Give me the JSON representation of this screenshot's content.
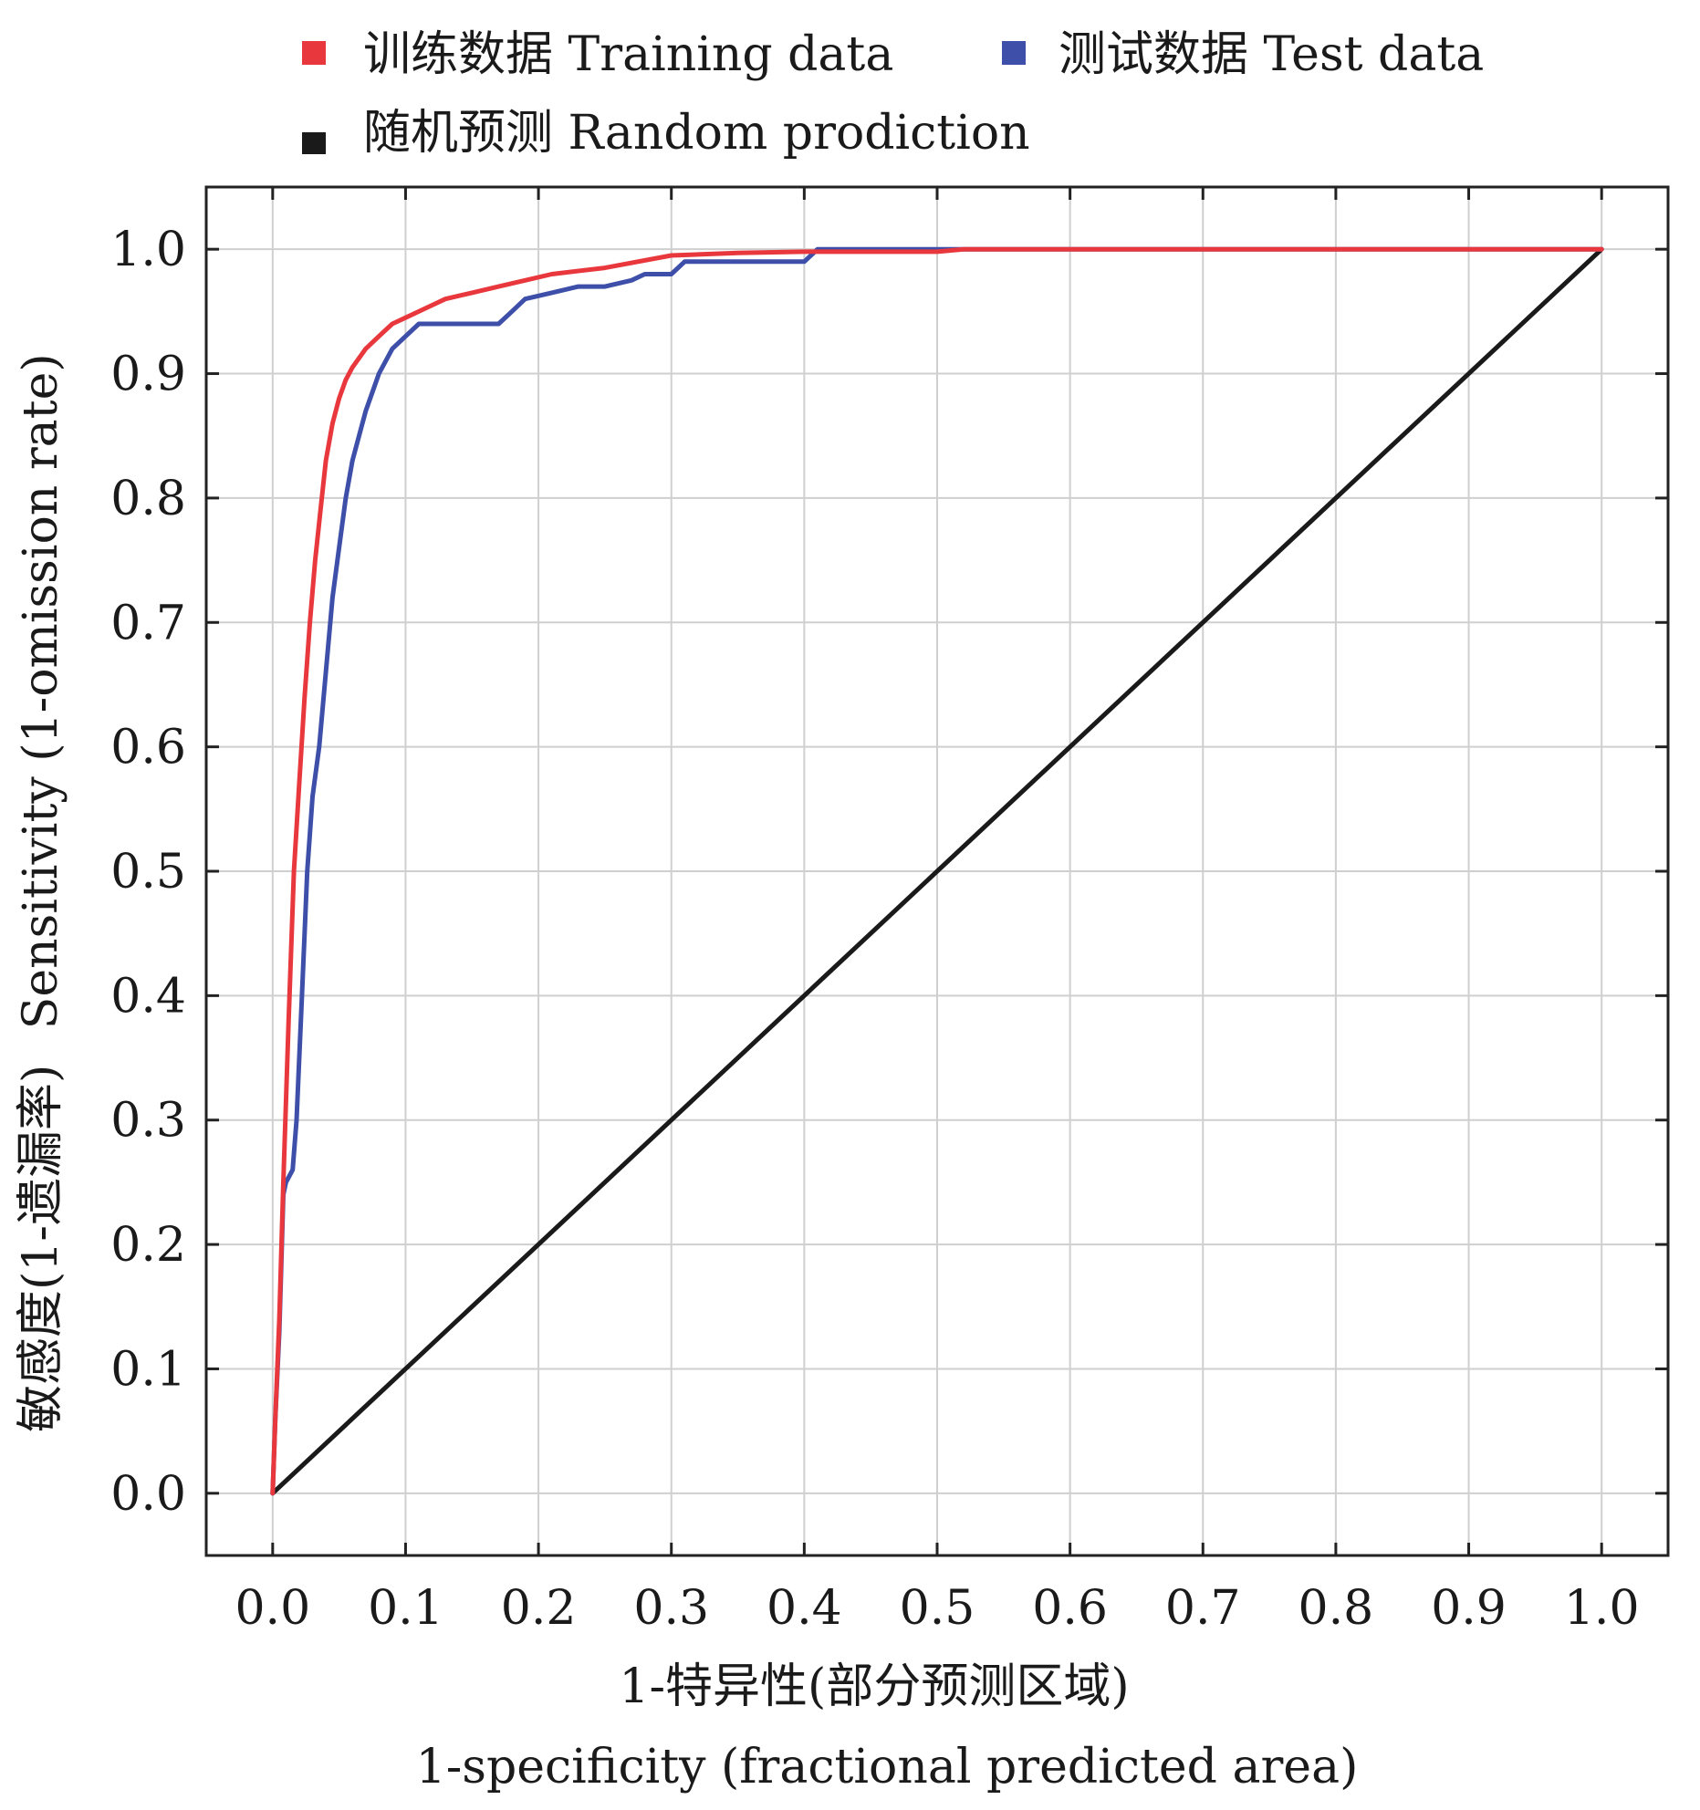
{
  "chart_data": {
    "type": "line",
    "title": "",
    "xlabel": "1-特异性(部分预测区域)",
    "xlabel_en": "1-specificity (fractional predicted area)",
    "ylabel": "敏感度(1-遗漏率)",
    "ylabel_en": "Sensitivity (1-omission rate)",
    "xlim": [
      -0.05,
      1.05
    ],
    "ylim": [
      -0.05,
      1.05
    ],
    "x_ticks": [
      "0.0",
      "0.1",
      "0.2",
      "0.3",
      "0.4",
      "0.5",
      "0.6",
      "0.7",
      "0.8",
      "0.9",
      "1.0"
    ],
    "y_ticks": [
      "0.0",
      "0.1",
      "0.2",
      "0.3",
      "0.4",
      "0.5",
      "0.6",
      "0.7",
      "0.8",
      "0.9",
      "1.0"
    ],
    "grid": true,
    "legend_placement": "top",
    "series": [
      {
        "name": "训练数据 Training data",
        "color": "#e8383d",
        "x": [
          0.0,
          0.002,
          0.005,
          0.008,
          0.012,
          0.016,
          0.02,
          0.024,
          0.028,
          0.032,
          0.036,
          0.04,
          0.045,
          0.05,
          0.055,
          0.06,
          0.07,
          0.08,
          0.09,
          0.1,
          0.11,
          0.12,
          0.13,
          0.15,
          0.17,
          0.19,
          0.21,
          0.25,
          0.3,
          0.35,
          0.4,
          0.45,
          0.5,
          0.52,
          0.6,
          0.7,
          0.8,
          0.9,
          1.0
        ],
        "y": [
          0.0,
          0.06,
          0.14,
          0.25,
          0.38,
          0.5,
          0.57,
          0.64,
          0.7,
          0.75,
          0.79,
          0.83,
          0.86,
          0.88,
          0.895,
          0.905,
          0.92,
          0.93,
          0.94,
          0.945,
          0.95,
          0.955,
          0.96,
          0.965,
          0.97,
          0.975,
          0.98,
          0.985,
          0.995,
          0.997,
          0.998,
          0.998,
          0.998,
          1.0,
          1.0,
          1.0,
          1.0,
          1.0,
          1.0
        ]
      },
      {
        "name": "测试数据 Test data",
        "color": "#3d4fa8",
        "x": [
          0.0,
          0.002,
          0.005,
          0.008,
          0.01,
          0.015,
          0.018,
          0.022,
          0.026,
          0.03,
          0.035,
          0.04,
          0.045,
          0.05,
          0.055,
          0.06,
          0.065,
          0.07,
          0.08,
          0.09,
          0.1,
          0.11,
          0.12,
          0.14,
          0.17,
          0.18,
          0.19,
          0.21,
          0.23,
          0.25,
          0.27,
          0.28,
          0.3,
          0.31,
          0.35,
          0.4,
          0.41,
          0.5,
          0.6,
          0.7,
          0.8,
          0.9,
          1.0
        ],
        "y": [
          0.0,
          0.06,
          0.13,
          0.24,
          0.25,
          0.26,
          0.3,
          0.4,
          0.5,
          0.56,
          0.6,
          0.66,
          0.72,
          0.76,
          0.8,
          0.83,
          0.85,
          0.87,
          0.9,
          0.92,
          0.93,
          0.94,
          0.94,
          0.94,
          0.94,
          0.95,
          0.96,
          0.965,
          0.97,
          0.97,
          0.975,
          0.98,
          0.98,
          0.99,
          0.99,
          0.99,
          1.0,
          1.0,
          1.0,
          1.0,
          1.0,
          1.0,
          1.0
        ]
      },
      {
        "name": "随机预测 Random prodiction",
        "color": "#1a1a1a",
        "x": [
          0.0,
          1.0
        ],
        "y": [
          0.0,
          1.0
        ]
      }
    ]
  }
}
